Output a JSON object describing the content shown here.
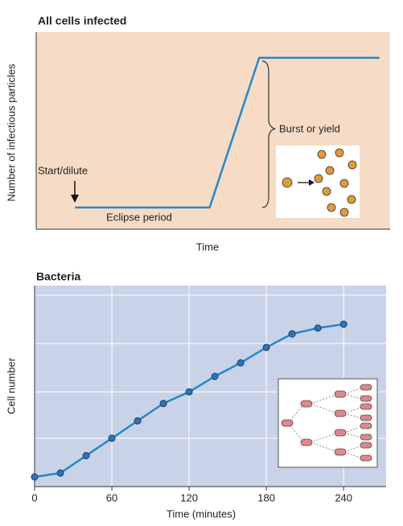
{
  "chart_data": [
    {
      "type": "line",
      "title": "All cells infected",
      "y_label": "Number of infectious particles",
      "x_label": "Time",
      "x": [
        11,
        49,
        63,
        97
      ],
      "series": [
        {
          "color": "#2a86c7",
          "values": [
            11,
            11,
            87,
            87
          ]
        }
      ],
      "xlim": [
        0,
        100
      ],
      "ylim": [
        0,
        100
      ],
      "markers": false,
      "background": "#f6dcc6",
      "annotations": [
        "Start/dilute",
        "Eclipse period",
        "Burst or yield"
      ]
    },
    {
      "type": "line",
      "title": "Bacteria",
      "y_label": "Cell number",
      "x_label": "Time (minutes)",
      "x": [
        0,
        20,
        40,
        60,
        80,
        100,
        120,
        140,
        160,
        180,
        200,
        220,
        240
      ],
      "series": [
        {
          "color": "#2a86c7",
          "values": [
            1,
            3,
            12,
            21,
            30,
            39,
            45,
            53,
            60,
            68,
            75,
            78,
            80
          ]
        }
      ],
      "xlim": [
        0,
        273
      ],
      "ylim": [
        -4,
        100
      ],
      "xticks": [
        0,
        60,
        120,
        180,
        240
      ],
      "ygrid": [
        21,
        45,
        70,
        95
      ],
      "grid": true,
      "markers": true,
      "background": "#c9d3e8"
    }
  ]
}
